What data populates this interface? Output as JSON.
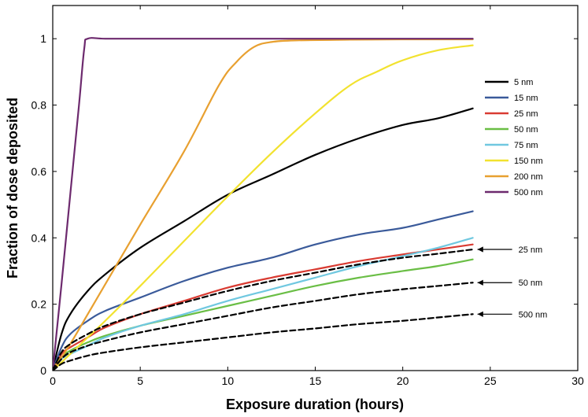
{
  "chart_data": {
    "type": "line",
    "title": "",
    "xlabel": "Exposure duration (hours)",
    "ylabel": "Fraction of dose deposited",
    "xlim": [
      0,
      30
    ],
    "ylim": [
      0,
      1.1
    ],
    "xticks": [
      0,
      5,
      10,
      15,
      20,
      25,
      30
    ],
    "yticks": [
      0,
      0.2,
      0.4,
      0.6,
      0.8,
      1
    ],
    "grid": false,
    "legend_position": "right",
    "series": [
      {
        "name": "5 nm",
        "color": "#000000",
        "dashed": false,
        "x": [
          0,
          0.5,
          1,
          2,
          3,
          5,
          7.5,
          10,
          12.5,
          15,
          17.5,
          20,
          22,
          24
        ],
        "y": [
          0,
          0.11,
          0.17,
          0.24,
          0.29,
          0.37,
          0.45,
          0.53,
          0.59,
          0.65,
          0.7,
          0.74,
          0.76,
          0.79
        ]
      },
      {
        "name": "15 nm",
        "color": "#3a5a9a",
        "dashed": false,
        "x": [
          0,
          0.5,
          1,
          2,
          3,
          5,
          7.5,
          10,
          12.5,
          15,
          17.5,
          20,
          22,
          24
        ],
        "y": [
          0,
          0.07,
          0.11,
          0.15,
          0.18,
          0.22,
          0.27,
          0.31,
          0.34,
          0.38,
          0.41,
          0.43,
          0.455,
          0.48
        ]
      },
      {
        "name": "25 nm",
        "color": "#d93b32",
        "dashed": false,
        "x": [
          0,
          0.5,
          1,
          2,
          3,
          5,
          7.5,
          10,
          12.5,
          15,
          17.5,
          20,
          22,
          24
        ],
        "y": [
          0,
          0.05,
          0.07,
          0.1,
          0.13,
          0.17,
          0.21,
          0.25,
          0.28,
          0.305,
          0.33,
          0.35,
          0.365,
          0.38
        ]
      },
      {
        "name": "50 nm",
        "color": "#6abe45",
        "dashed": false,
        "x": [
          0,
          0.5,
          1,
          2,
          3,
          5,
          7.5,
          10,
          12.5,
          15,
          17.5,
          20,
          22,
          24
        ],
        "y": [
          0,
          0.04,
          0.06,
          0.085,
          0.105,
          0.135,
          0.165,
          0.195,
          0.225,
          0.255,
          0.28,
          0.3,
          0.315,
          0.335
        ]
      },
      {
        "name": "75 nm",
        "color": "#70c8e0",
        "dashed": false,
        "x": [
          0,
          0.5,
          1,
          2,
          3,
          5,
          7.5,
          10,
          12.5,
          15,
          17.5,
          20,
          22,
          24
        ],
        "y": [
          0,
          0.035,
          0.05,
          0.075,
          0.1,
          0.135,
          0.17,
          0.21,
          0.245,
          0.28,
          0.315,
          0.345,
          0.37,
          0.4
        ]
      },
      {
        "name": "150 nm",
        "color": "#f2e22f",
        "dashed": false,
        "x": [
          0,
          1,
          2,
          3,
          5,
          7.5,
          10,
          12.5,
          15,
          17,
          18.5,
          20,
          22,
          24
        ],
        "y": [
          0,
          0.05,
          0.1,
          0.15,
          0.255,
          0.39,
          0.525,
          0.655,
          0.775,
          0.86,
          0.9,
          0.935,
          0.965,
          0.98
        ]
      },
      {
        "name": "200 nm",
        "color": "#e8a030",
        "dashed": false,
        "x": [
          0,
          1,
          2,
          3,
          5,
          7.5,
          9.5,
          10.5,
          11.5,
          12.5,
          14,
          17,
          20,
          24
        ],
        "y": [
          0,
          0.08,
          0.17,
          0.26,
          0.44,
          0.66,
          0.86,
          0.93,
          0.975,
          0.99,
          0.995,
          0.997,
          0.998,
          0.998
        ]
      },
      {
        "name": "500 nm",
        "color": "#6d2a6e",
        "dashed": false,
        "x": [
          0,
          0.5,
          1,
          1.5,
          1.8,
          2,
          3,
          5,
          10,
          15,
          20,
          24
        ],
        "y": [
          0,
          0.26,
          0.53,
          0.8,
          0.97,
          1.0,
          1.0,
          1.0,
          1.0,
          1.0,
          1.0,
          1.0
        ]
      },
      {
        "name": "25 nm",
        "color": "#000000",
        "dashed": true,
        "x": [
          0,
          0.5,
          1,
          2,
          3,
          5,
          7.5,
          10,
          12.5,
          15,
          17.5,
          20,
          22,
          24
        ],
        "y": [
          0,
          0.055,
          0.08,
          0.11,
          0.135,
          0.17,
          0.205,
          0.24,
          0.27,
          0.295,
          0.32,
          0.34,
          0.352,
          0.365
        ]
      },
      {
        "name": "50 nm",
        "color": "#000000",
        "dashed": true,
        "x": [
          0,
          0.5,
          1,
          2,
          3,
          5,
          7.5,
          10,
          12.5,
          15,
          17.5,
          20,
          22,
          24
        ],
        "y": [
          0,
          0.035,
          0.055,
          0.075,
          0.09,
          0.115,
          0.14,
          0.165,
          0.19,
          0.21,
          0.23,
          0.245,
          0.255,
          0.265
        ]
      },
      {
        "name": "500 nm",
        "color": "#000000",
        "dashed": true,
        "x": [
          0,
          0.5,
          1,
          2,
          3,
          5,
          7.5,
          10,
          12.5,
          15,
          17.5,
          20,
          22,
          24
        ],
        "y": [
          0,
          0.02,
          0.03,
          0.045,
          0.055,
          0.07,
          0.085,
          0.1,
          0.115,
          0.127,
          0.14,
          0.15,
          0.16,
          0.17
        ]
      }
    ],
    "legend": [
      "5 nm",
      "15 nm",
      "25 nm",
      "50 nm",
      "75 nm",
      "150 nm",
      "200 nm",
      "500 nm"
    ],
    "annotations": [
      {
        "text": "25 nm",
        "series_index": 8
      },
      {
        "text": "50 nm",
        "series_index": 9
      },
      {
        "text": "500 nm",
        "series_index": 10
      }
    ]
  }
}
